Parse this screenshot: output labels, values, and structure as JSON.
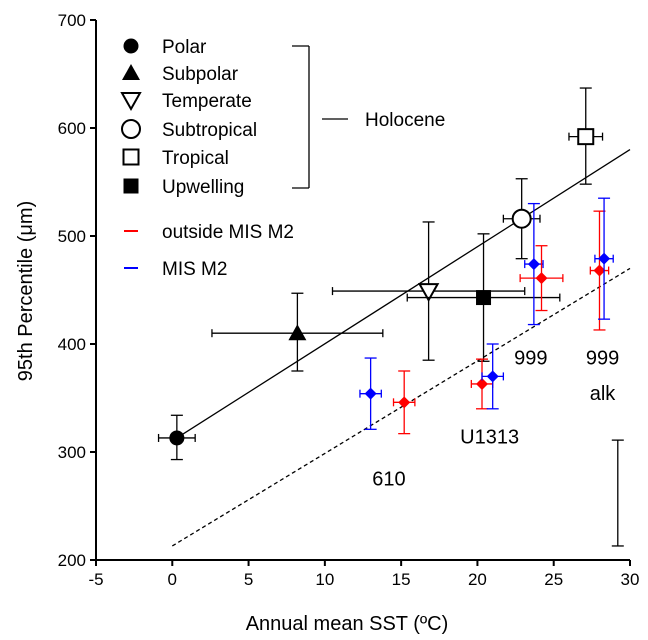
{
  "chart_data": {
    "type": "scatter",
    "xlabel": "Annual mean SST (ºC)",
    "ylabel": "95th Percentile (μm)",
    "xlim": [
      -5,
      30
    ],
    "ylim": [
      200,
      700
    ],
    "xticks": [
      -5,
      0,
      5,
      10,
      15,
      20,
      25,
      30
    ],
    "yticks": [
      200,
      300,
      400,
      500,
      600,
      700
    ],
    "grid": false,
    "legend_position": "top-left",
    "legend": {
      "entries": [
        {
          "label": "Polar",
          "marker": "filled-circle"
        },
        {
          "label": "Subpolar",
          "marker": "filled-triangle"
        },
        {
          "label": "Temperate",
          "marker": "open-triangle-down"
        },
        {
          "label": "Subtropical",
          "marker": "open-circle"
        },
        {
          "label": "Tropical",
          "marker": "open-square"
        },
        {
          "label": "Upwelling",
          "marker": "filled-square"
        },
        {
          "label": "outside MIS M2",
          "marker": "red-line",
          "color": "#ff0000"
        },
        {
          "label": "MIS M2",
          "marker": "blue-line",
          "color": "#0000ff"
        }
      ],
      "bracket_label": "Holocene"
    },
    "holocene_points": [
      {
        "label": "Polar",
        "x": 0.3,
        "y": 313,
        "xerr": 1.2,
        "yerr_low": 20,
        "yerr_high": 21,
        "marker": "filled-circle"
      },
      {
        "label": "Subpolar",
        "x": 8.2,
        "y": 410,
        "xerr": 5.6,
        "yerr_low": 35,
        "yerr_high": 37,
        "marker": "filled-triangle"
      },
      {
        "label": "Temperate",
        "x": 16.8,
        "y": 449,
        "xerr": 6.3,
        "yerr_low": 64,
        "yerr_high": 64,
        "marker": "open-triangle-down"
      },
      {
        "label": "Subtropical",
        "x": 22.9,
        "y": 516,
        "xerr": 1.2,
        "yerr_low": 37,
        "yerr_high": 37,
        "marker": "open-circle"
      },
      {
        "label": "Tropical",
        "x": 27.1,
        "y": 592,
        "xerr": 1.1,
        "yerr_low": 44,
        "yerr_high": 45,
        "marker": "open-square"
      },
      {
        "label": "Upwelling",
        "x": 20.4,
        "y": 443,
        "xerr": 5.0,
        "yerr_low": 59,
        "yerr_high": 59,
        "marker": "filled-square"
      }
    ],
    "site_points": [
      {
        "series": "MIS M2",
        "color": "#0000ff",
        "x": 13.0,
        "y": 354,
        "xerr": 0.7,
        "yerr_low": 33,
        "yerr_high": 33
      },
      {
        "series": "outside MIS M2",
        "color": "#ff0000",
        "x": 15.2,
        "y": 346,
        "xerr": 0.7,
        "yerr_low": 29,
        "yerr_high": 29
      },
      {
        "series": "outside MIS M2",
        "color": "#ff0000",
        "x": 20.3,
        "y": 363,
        "xerr": 0.7,
        "yerr_low": 23,
        "yerr_high": 23
      },
      {
        "series": "MIS M2",
        "color": "#0000ff",
        "x": 21.0,
        "y": 370,
        "xerr": 0.7,
        "yerr_low": 30,
        "yerr_high": 30
      },
      {
        "series": "MIS M2",
        "color": "#0000ff",
        "x": 23.7,
        "y": 474,
        "xerr": 0.6,
        "yerr_low": 56,
        "yerr_high": 56
      },
      {
        "series": "outside MIS M2",
        "color": "#ff0000",
        "x": 24.2,
        "y": 461,
        "xerr": 1.4,
        "yerr_low": 30,
        "yerr_high": 30
      },
      {
        "series": "outside MIS M2",
        "color": "#ff0000",
        "x": 28.0,
        "y": 468,
        "xerr": 0.6,
        "yerr_low": 55,
        "yerr_high": 55
      },
      {
        "series": "MIS M2",
        "color": "#0000ff",
        "x": 28.3,
        "y": 479,
        "xerr": 0.6,
        "yerr_low": 56,
        "yerr_high": 56
      }
    ],
    "fit_lines": [
      {
        "style": "solid",
        "x": [
          0.3,
          30
        ],
        "y": [
          313,
          580
        ]
      },
      {
        "style": "dashed",
        "x": [
          0,
          30
        ],
        "y": [
          213,
          470
        ]
      }
    ],
    "scale_bar": {
      "x": 29.2,
      "y_low": 213,
      "y_high": 311
    },
    "annotations": [
      {
        "text": "610",
        "x": 14.2,
        "y": 269
      },
      {
        "text": "U1313",
        "x": 20.8,
        "y": 308
      },
      {
        "text": "999",
        "x": 23.5,
        "y": 381
      },
      {
        "text": "999",
        "x": 28.2,
        "y": 381
      },
      {
        "text": "alk",
        "x": 28.2,
        "y": 348
      }
    ]
  }
}
